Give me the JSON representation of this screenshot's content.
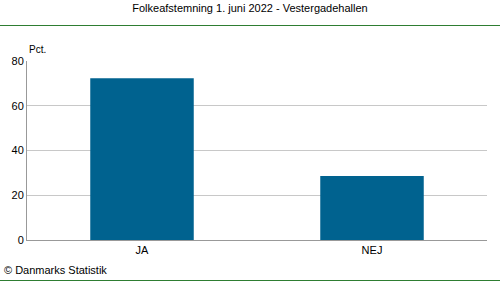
{
  "chart_data": {
    "type": "bar",
    "title": "Folkeafstemning 1. juni 2022 - Vestergadehallen",
    "y_label": "Pct.",
    "categories": [
      "JA",
      "NEJ"
    ],
    "values": [
      72.3,
      28.6
    ],
    "color": "#00628f",
    "ylim": [
      0,
      80
    ],
    "yticks": [
      0,
      20,
      40,
      60,
      80
    ],
    "grid": true,
    "annotations": [
      "© Danmarks Statistik"
    ]
  }
}
